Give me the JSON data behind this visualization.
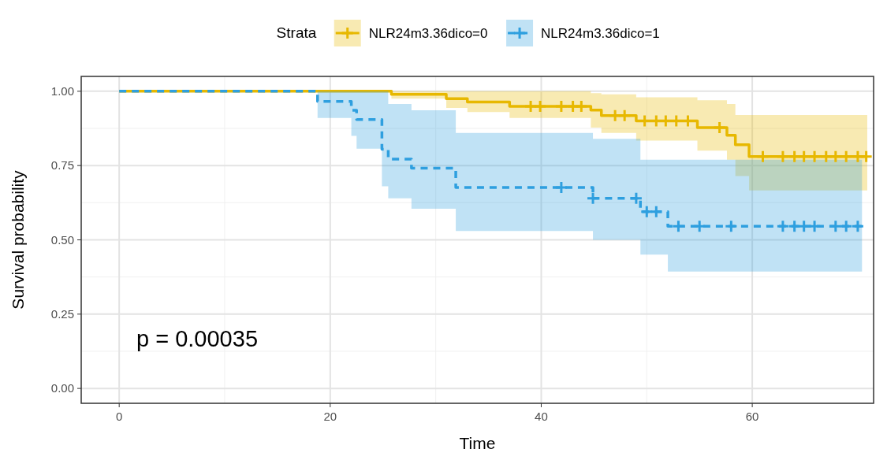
{
  "chart_data": {
    "type": "step",
    "xlabel": "Time",
    "ylabel": "Survival probability",
    "legend_title": "Strata",
    "legend": "top",
    "xlim": [
      -3.6,
      71.5
    ],
    "ylim": [
      -0.05,
      1.05
    ],
    "xticks": [
      0,
      20,
      40,
      60
    ],
    "yticks": [
      {
        "value": 0,
        "label": "0.00"
      },
      {
        "value": 0.25,
        "label": "0.25"
      },
      {
        "value": 0.5,
        "label": "0.50"
      },
      {
        "value": 0.75,
        "label": "0.75"
      },
      {
        "value": 1,
        "label": "1.00"
      }
    ],
    "grid": true,
    "annotations": [
      "p = 0.00035"
    ],
    "series": [
      {
        "name": "NLR24m3.36dico=0",
        "color": "#e7b800",
        "line_style": "solid",
        "x": [
          0,
          25.8,
          31.0,
          33.0,
          37.0,
          44.7,
          45.7,
          49.0,
          54.8,
          57.6,
          58.4,
          59.7,
          70.9
        ],
        "values": [
          1,
          0.99,
          0.975,
          0.964,
          0.949,
          0.937,
          0.918,
          0.9,
          0.878,
          0.852,
          0.82,
          0.78,
          0.78
        ],
        "upper": [
          1,
          1,
          1,
          1,
          1,
          0.994,
          0.99,
          0.98,
          0.97,
          0.957,
          0.92,
          0.92,
          0.92
        ],
        "lower": [
          1,
          0.975,
          0.944,
          0.93,
          0.91,
          0.878,
          0.86,
          0.834,
          0.8,
          0.77,
          0.715,
          0.666,
          0.666
        ]
      },
      {
        "name": "NLR24m3.36dico=1",
        "color": "#2e9fdf",
        "line_style": "dashed",
        "x": [
          0,
          18.8,
          22.0,
          22.5,
          24.9,
          25.5,
          27.7,
          31.9,
          44.9,
          49.4,
          52.0,
          70.4
        ],
        "values": [
          1,
          0.966,
          0.936,
          0.905,
          0.805,
          0.772,
          0.741,
          0.676,
          0.64,
          0.595,
          0.546,
          0.546
        ],
        "upper": [
          1,
          1,
          1,
          1,
          1,
          0.957,
          0.936,
          0.86,
          0.84,
          0.77,
          0.77,
          0.77
        ],
        "lower": [
          1,
          0.91,
          0.85,
          0.807,
          0.68,
          0.64,
          0.605,
          0.53,
          0.5,
          0.45,
          0.393,
          0.393
        ]
      },
      {
        "type": "scatter",
        "color": "#e7b800",
        "marker": "cross",
        "x": [
          39.0,
          39.9,
          41.9,
          43.0,
          43.8,
          47.0,
          47.9,
          49.8,
          50.9,
          51.8,
          52.8,
          53.9,
          56.9,
          61.0,
          62.9,
          64.0,
          64.9,
          65.9,
          67.0,
          67.9,
          68.9,
          70.0,
          70.8
        ],
        "values": [
          0.949,
          0.949,
          0.949,
          0.949,
          0.949,
          0.918,
          0.918,
          0.9,
          0.9,
          0.9,
          0.9,
          0.9,
          0.878,
          0.78,
          0.78,
          0.78,
          0.78,
          0.78,
          0.78,
          0.78,
          0.78,
          0.78,
          0.78
        ]
      },
      {
        "type": "scatter",
        "color": "#2e9fdf",
        "marker": "cross",
        "x": [
          41.9,
          44.9,
          49.0,
          50.0,
          50.9,
          53.0,
          55.0,
          58.0,
          62.9,
          64.0,
          64.9,
          65.9,
          67.9,
          68.9,
          70.0
        ],
        "values": [
          0.676,
          0.64,
          0.64,
          0.595,
          0.595,
          0.546,
          0.546,
          0.546,
          0.546,
          0.546,
          0.546,
          0.546,
          0.546,
          0.546,
          0.546
        ]
      }
    ]
  }
}
